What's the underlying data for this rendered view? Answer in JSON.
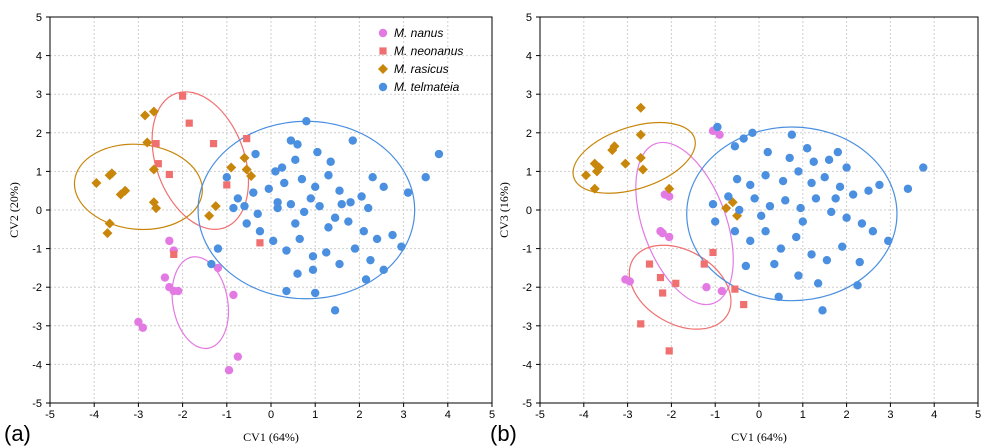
{
  "chart_data": [
    {
      "panel_label": "(a)",
      "type": "scatter",
      "xlabel": "CV1 (64%)",
      "ylabel": "CV2 (20%)",
      "xlim": [
        -5,
        5
      ],
      "ylim": [
        -5,
        5
      ],
      "xticks": [
        "-5",
        "-4",
        "-3",
        "-2",
        "-1",
        "0",
        "1",
        "2",
        "3",
        "4",
        "5"
      ],
      "yticks": [
        "-5",
        "-4",
        "-3",
        "-2",
        "-1",
        "0",
        "1",
        "2",
        "3",
        "4",
        "5"
      ],
      "grid": true,
      "legend": "top-right",
      "series": [
        {
          "name": "M. nanus",
          "marker": "circle",
          "color": "#e37ae3",
          "points": [
            [
              -2.3,
              -0.8
            ],
            [
              -2.2,
              -1.05
            ],
            [
              -2.4,
              -1.75
            ],
            [
              -2.3,
              -2.0
            ],
            [
              -2.2,
              -2.1
            ],
            [
              -2.1,
              -2.1
            ],
            [
              -3.0,
              -2.9
            ],
            [
              -2.9,
              -3.05
            ],
            [
              -1.2,
              -1.5
            ],
            [
              -0.85,
              -2.2
            ],
            [
              -0.75,
              -3.8
            ],
            [
              -0.95,
              -4.15
            ]
          ],
          "ellipse": {
            "cx": -1.6,
            "cy": -2.4,
            "rx": 0.62,
            "ry": 1.2,
            "angle": 10
          }
        },
        {
          "name": "M. neonanus",
          "marker": "square",
          "color": "#f07070",
          "points": [
            [
              -2.0,
              2.95
            ],
            [
              -1.85,
              2.25
            ],
            [
              -2.6,
              1.72
            ],
            [
              -2.55,
              1.2
            ],
            [
              -2.3,
              0.92
            ],
            [
              -1.3,
              1.72
            ],
            [
              -1.0,
              0.65
            ],
            [
              -0.55,
              1.85
            ],
            [
              -2.2,
              -1.15
            ],
            [
              -0.25,
              -0.85
            ]
          ],
          "ellipse": {
            "cx": -1.6,
            "cy": 1.28,
            "rx": 1.0,
            "ry": 1.85,
            "angle": 20
          }
        },
        {
          "name": "M. rasicus",
          "marker": "diamond",
          "color": "#c8860a",
          "points": [
            [
              -2.85,
              2.45
            ],
            [
              -2.65,
              2.55
            ],
            [
              -2.8,
              1.75
            ],
            [
              -3.65,
              0.9
            ],
            [
              -3.6,
              0.95
            ],
            [
              -3.95,
              0.7
            ],
            [
              -3.3,
              0.5
            ],
            [
              -3.4,
              0.4
            ],
            [
              -2.65,
              1.05
            ],
            [
              -2.65,
              0.2
            ],
            [
              -2.6,
              0.05
            ],
            [
              -3.65,
              -0.35
            ],
            [
              -3.7,
              -0.6
            ],
            [
              -0.9,
              1.1
            ],
            [
              -0.6,
              1.35
            ],
            [
              -0.55,
              1.05
            ],
            [
              -0.45,
              0.88
            ],
            [
              -1.4,
              -0.15
            ],
            [
              -1.25,
              0.1
            ]
          ],
          "ellipse": {
            "cx": -3.0,
            "cy": 0.6,
            "rx": 1.45,
            "ry": 1.1,
            "angle": -5
          }
        },
        {
          "name": "M. telmateia",
          "marker": "circle",
          "color": "#4a8fe0",
          "points": [
            [
              0.8,
              2.3
            ],
            [
              0.45,
              1.8
            ],
            [
              -0.35,
              1.45
            ],
            [
              0.25,
              1.1
            ],
            [
              0.55,
              1.3
            ],
            [
              1.05,
              1.5
            ],
            [
              1.35,
              1.25
            ],
            [
              0.1,
              1.0
            ],
            [
              -0.05,
              0.55
            ],
            [
              0.3,
              0.7
            ],
            [
              0.7,
              0.8
            ],
            [
              1.0,
              0.6
            ],
            [
              1.3,
              0.9
            ],
            [
              1.55,
              0.5
            ],
            [
              1.8,
              0.2
            ],
            [
              2.05,
              0.35
            ],
            [
              2.3,
              0.85
            ],
            [
              2.55,
              0.6
            ],
            [
              3.1,
              0.45
            ],
            [
              3.5,
              0.85
            ],
            [
              3.8,
              1.45
            ],
            [
              -1.0,
              0.85
            ],
            [
              -0.75,
              0.3
            ],
            [
              -0.85,
              0.05
            ],
            [
              -0.6,
              0.1
            ],
            [
              -0.3,
              -0.1
            ],
            [
              0.15,
              0.2
            ],
            [
              0.45,
              0.15
            ],
            [
              0.75,
              -0.05
            ],
            [
              1.1,
              0.1
            ],
            [
              1.45,
              -0.2
            ],
            [
              1.75,
              -0.3
            ],
            [
              2.1,
              -0.55
            ],
            [
              2.4,
              -0.75
            ],
            [
              2.75,
              -0.65
            ],
            [
              2.95,
              -0.95
            ],
            [
              -0.55,
              -0.35
            ],
            [
              -0.25,
              -0.55
            ],
            [
              0.05,
              -0.8
            ],
            [
              0.35,
              -1.05
            ],
            [
              0.65,
              -0.75
            ],
            [
              0.95,
              -1.2
            ],
            [
              1.25,
              -1.1
            ],
            [
              1.55,
              -1.4
            ],
            [
              1.9,
              -1.0
            ],
            [
              2.25,
              -1.3
            ],
            [
              2.55,
              -1.55
            ],
            [
              -1.2,
              -1.0
            ],
            [
              -1.35,
              -1.4
            ],
            [
              0.6,
              -1.65
            ],
            [
              0.95,
              -1.55
            ],
            [
              2.15,
              -1.8
            ],
            [
              0.35,
              -2.1
            ],
            [
              1.0,
              -2.15
            ],
            [
              1.45,
              -2.6
            ],
            [
              0.6,
              1.7
            ],
            [
              1.85,
              1.8
            ],
            [
              0.15,
              0.05
            ],
            [
              0.9,
              0.3
            ],
            [
              1.6,
              0.15
            ],
            [
              2.2,
              0.05
            ],
            [
              -0.4,
              0.45
            ],
            [
              0.55,
              -0.35
            ],
            [
              1.3,
              -0.45
            ]
          ],
          "ellipse": {
            "cx": 0.8,
            "cy": 0.0,
            "rx": 2.45,
            "ry": 2.3,
            "angle": 0
          }
        }
      ]
    },
    {
      "panel_label": "(b)",
      "type": "scatter",
      "xlabel": "CV1 (64%)",
      "ylabel": "CV3 (16%)",
      "xlim": [
        -5,
        5
      ],
      "ylim": [
        -5,
        5
      ],
      "xticks": [
        "-5",
        "-4",
        "-3",
        "-2",
        "-1",
        "0",
        "1",
        "2",
        "3",
        "4",
        "5"
      ],
      "yticks": [
        "-5",
        "-4",
        "-3",
        "-2",
        "-1",
        "0",
        "1",
        "2",
        "3",
        "4",
        "5"
      ],
      "grid": true,
      "series": [
        {
          "name": "M. nanus",
          "marker": "circle",
          "color": "#e37ae3",
          "points": [
            [
              -1.05,
              2.05
            ],
            [
              -0.9,
              1.95
            ],
            [
              -2.15,
              0.4
            ],
            [
              -2.05,
              0.35
            ],
            [
              -2.25,
              -0.55
            ],
            [
              -2.2,
              -0.6
            ],
            [
              -2.05,
              -0.7
            ],
            [
              -3.05,
              -1.8
            ],
            [
              -2.95,
              -1.85
            ],
            [
              -1.2,
              -2.0
            ],
            [
              -0.85,
              -2.1
            ]
          ],
          "ellipse": {
            "cx": -1.7,
            "cy": -0.35,
            "rx": 0.95,
            "ry": 2.2,
            "angle": 20
          }
        },
        {
          "name": "M. neonanus",
          "marker": "square",
          "color": "#f07070",
          "points": [
            [
              -2.5,
              -1.4
            ],
            [
              -2.25,
              -1.75
            ],
            [
              -2.2,
              -2.15
            ],
            [
              -1.9,
              -1.9
            ],
            [
              -1.05,
              -1.1
            ],
            [
              -1.25,
              -1.4
            ],
            [
              -0.55,
              -2.05
            ],
            [
              -2.7,
              -2.95
            ],
            [
              -0.35,
              -2.45
            ],
            [
              -2.05,
              -3.65
            ]
          ],
          "ellipse": {
            "cx": -1.8,
            "cy": -2.0,
            "rx": 1.25,
            "ry": 0.95,
            "angle": -30
          }
        },
        {
          "name": "M. rasicus",
          "marker": "diamond",
          "color": "#c8860a",
          "points": [
            [
              -2.7,
              2.65
            ],
            [
              -2.7,
              1.95
            ],
            [
              -3.3,
              1.65
            ],
            [
              -3.35,
              1.55
            ],
            [
              -3.75,
              1.2
            ],
            [
              -3.65,
              1.1
            ],
            [
              -3.7,
              1.0
            ],
            [
              -3.05,
              1.2
            ],
            [
              -2.7,
              1.35
            ],
            [
              -2.65,
              1.05
            ],
            [
              -3.95,
              0.9
            ],
            [
              -3.75,
              0.55
            ],
            [
              -2.05,
              0.55
            ],
            [
              -0.75,
              0.05
            ],
            [
              -0.5,
              -0.15
            ],
            [
              -0.6,
              0.2
            ]
          ],
          "ellipse": {
            "cx": -2.85,
            "cy": 1.35,
            "rx": 1.45,
            "ry": 0.8,
            "angle": 18
          }
        },
        {
          "name": "M. telmateia",
          "marker": "circle",
          "color": "#4a8fe0",
          "points": [
            [
              -0.95,
              2.15
            ],
            [
              -0.55,
              1.65
            ],
            [
              -0.35,
              1.85
            ],
            [
              -0.15,
              2.0
            ],
            [
              0.2,
              1.5
            ],
            [
              0.75,
              1.95
            ],
            [
              1.25,
              1.25
            ],
            [
              1.6,
              1.3
            ],
            [
              1.8,
              1.5
            ],
            [
              2.0,
              1.1
            ],
            [
              -0.5,
              0.8
            ],
            [
              -0.2,
              0.65
            ],
            [
              0.15,
              0.9
            ],
            [
              0.55,
              0.75
            ],
            [
              0.9,
              1.0
            ],
            [
              1.2,
              0.7
            ],
            [
              1.5,
              0.85
            ],
            [
              1.85,
              0.6
            ],
            [
              2.15,
              0.4
            ],
            [
              2.5,
              0.5
            ],
            [
              2.75,
              0.65
            ],
            [
              3.4,
              0.55
            ],
            [
              3.75,
              1.1
            ],
            [
              -1.05,
              0.15
            ],
            [
              -0.7,
              0.35
            ],
            [
              -0.45,
              0.0
            ],
            [
              -0.1,
              0.3
            ],
            [
              0.25,
              0.1
            ],
            [
              0.6,
              0.25
            ],
            [
              0.95,
              0.05
            ],
            [
              1.3,
              0.3
            ],
            [
              1.65,
              -0.05
            ],
            [
              2.0,
              -0.2
            ],
            [
              2.35,
              -0.35
            ],
            [
              2.6,
              -0.55
            ],
            [
              2.95,
              -0.8
            ],
            [
              -1.0,
              -0.3
            ],
            [
              -0.55,
              -0.55
            ],
            [
              -0.2,
              -0.8
            ],
            [
              0.15,
              -0.55
            ],
            [
              0.5,
              -1.0
            ],
            [
              0.85,
              -0.7
            ],
            [
              1.2,
              -1.15
            ],
            [
              1.55,
              -1.3
            ],
            [
              1.9,
              -0.95
            ],
            [
              2.3,
              -1.35
            ],
            [
              -0.3,
              -1.45
            ],
            [
              0.35,
              -1.4
            ],
            [
              0.9,
              -1.7
            ],
            [
              1.35,
              -1.9
            ],
            [
              2.25,
              -1.95
            ],
            [
              0.45,
              -2.25
            ],
            [
              1.45,
              -2.6
            ],
            [
              0.7,
              1.35
            ],
            [
              1.1,
              1.6
            ],
            [
              0.05,
              -0.15
            ],
            [
              1.0,
              -0.3
            ],
            [
              1.75,
              0.3
            ]
          ],
          "ellipse": {
            "cx": 0.75,
            "cy": -0.1,
            "rx": 2.4,
            "ry": 2.25,
            "angle": 0
          }
        }
      ]
    }
  ]
}
